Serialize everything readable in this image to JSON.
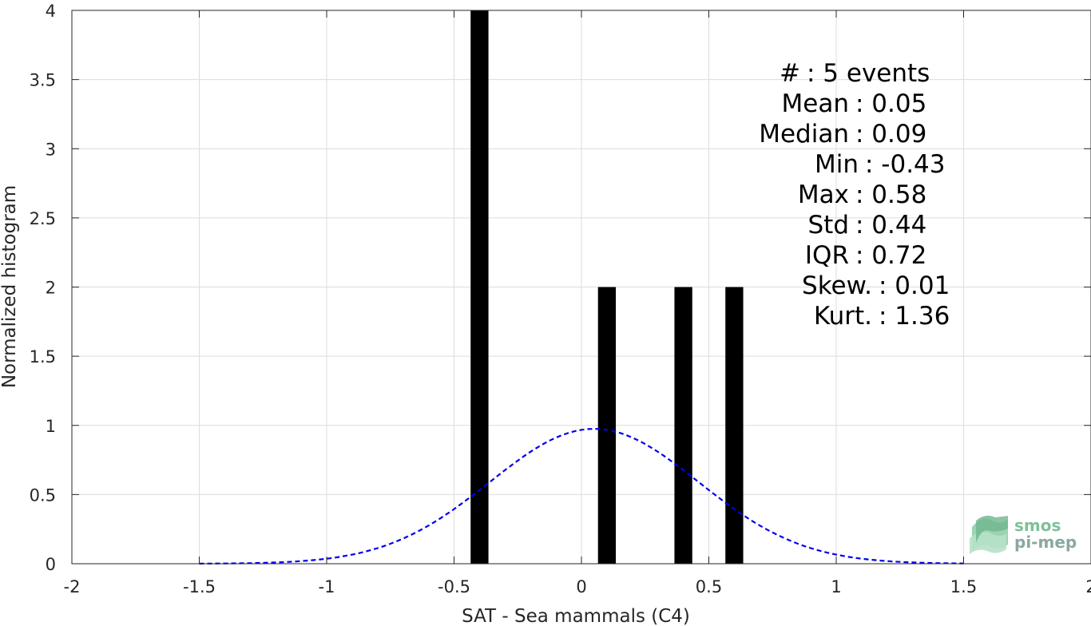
{
  "chart_data": {
    "type": "bar",
    "xlabel": "SAT - Sea mammals (C4)",
    "ylabel": "Normalized histogram",
    "xlim": [
      -2,
      2
    ],
    "ylim": [
      0,
      4
    ],
    "xticks": [
      -2,
      -1.5,
      -1,
      -0.5,
      0,
      0.5,
      1,
      1.5,
      2
    ],
    "xtick_labels": [
      "-2",
      "-1.5",
      "-1",
      "-0.5",
      "0",
      "0.5",
      "1",
      "1.5",
      "2"
    ],
    "yticks": [
      0,
      0.5,
      1,
      1.5,
      2,
      2.5,
      3,
      3.5,
      4
    ],
    "ytick_labels": [
      "0",
      "0.5",
      "1",
      "1.5",
      "2",
      "2.5",
      "3",
      "3.5",
      "4"
    ],
    "grid": true,
    "bar_width": 0.07,
    "bars": [
      {
        "x": -0.4,
        "value": 4
      },
      {
        "x": 0.1,
        "value": 2
      },
      {
        "x": 0.4,
        "value": 2
      },
      {
        "x": 0.6,
        "value": 2
      }
    ],
    "bar_color": "#000000",
    "fit_curve": {
      "style": "dashed",
      "color": "#0000ee",
      "mean": 0.05,
      "peak": 0.975,
      "x_range": [
        -1.5,
        1.5
      ],
      "samples": 121
    },
    "stats": [
      {
        "label": "#  ",
        "value": ": 5 events"
      },
      {
        "label": "Mean ",
        "value": ": 0.05"
      },
      {
        "label": "Median ",
        "value": ": 0.09"
      },
      {
        "label": "Min ",
        "value": ": -0.43"
      },
      {
        "label": "Max ",
        "value": ": 0.58"
      },
      {
        "label": "Std ",
        "value": ": 0.44"
      },
      {
        "label": "IQR ",
        "value": ": 0.72"
      },
      {
        "label": "Skew. ",
        "value": ": 0.01"
      },
      {
        "label": "Kurt. ",
        "value": ": 1.36"
      }
    ]
  },
  "logo": {
    "line1": "smos",
    "line2": "pi-mep",
    "color": "#7fbf9a"
  }
}
